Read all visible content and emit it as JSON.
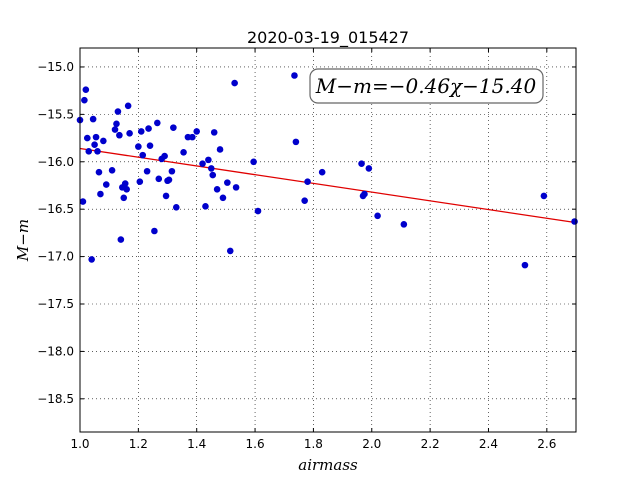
{
  "chart_data": {
    "type": "scatter",
    "title": "2020-03-19_015427",
    "xlabel": "airmass",
    "ylabel": "M−m",
    "xlim": [
      1.0,
      2.7
    ],
    "ylim": [
      -18.85,
      -14.8
    ],
    "ylim_note": "y axis inverted: -14.8 at top, -18.85 at bottom",
    "xticks": [
      1.0,
      1.2,
      1.4,
      1.6,
      1.8,
      2.0,
      2.2,
      2.4,
      2.6
    ],
    "xtick_labels": [
      "1.0",
      "1.2",
      "1.4",
      "1.6",
      "1.8",
      "2.0",
      "2.2",
      "2.4",
      "2.6"
    ],
    "yticks": [
      -15.0,
      -15.5,
      -16.0,
      -16.5,
      -17.0,
      -17.5,
      -18.0,
      -18.5
    ],
    "ytick_labels": [
      "−15.0",
      "−15.5",
      "−16.0",
      "−16.5",
      "−17.0",
      "−17.5",
      "−18.0",
      "−18.5"
    ],
    "grid": true,
    "annotation": "M−m=−0.46χ−15.40",
    "fit": {
      "slope": -0.46,
      "intercept": -15.4,
      "color": "#e00000"
    },
    "point_color": "#0000cc",
    "points": [
      [
        1.0,
        -15.56
      ],
      [
        1.01,
        -16.42
      ],
      [
        1.015,
        -15.35
      ],
      [
        1.02,
        -15.24
      ],
      [
        1.025,
        -15.75
      ],
      [
        1.03,
        -15.89
      ],
      [
        1.04,
        -17.03
      ],
      [
        1.045,
        -15.55
      ],
      [
        1.05,
        -15.82
      ],
      [
        1.055,
        -15.74
      ],
      [
        1.06,
        -15.89
      ],
      [
        1.065,
        -16.11
      ],
      [
        1.07,
        -16.34
      ],
      [
        1.08,
        -15.78
      ],
      [
        1.09,
        -16.24
      ],
      [
        1.11,
        -16.09
      ],
      [
        1.12,
        -15.66
      ],
      [
        1.125,
        -15.6
      ],
      [
        1.13,
        -15.47
      ],
      [
        1.135,
        -15.72
      ],
      [
        1.14,
        -16.82
      ],
      [
        1.145,
        -16.27
      ],
      [
        1.15,
        -16.38
      ],
      [
        1.155,
        -16.23
      ],
      [
        1.16,
        -16.29
      ],
      [
        1.165,
        -15.41
      ],
      [
        1.17,
        -15.7
      ],
      [
        1.2,
        -15.84
      ],
      [
        1.205,
        -16.21
      ],
      [
        1.21,
        -15.68
      ],
      [
        1.215,
        -15.93
      ],
      [
        1.23,
        -16.1
      ],
      [
        1.235,
        -15.65
      ],
      [
        1.24,
        -15.83
      ],
      [
        1.255,
        -16.73
      ],
      [
        1.265,
        -15.59
      ],
      [
        1.27,
        -16.18
      ],
      [
        1.28,
        -15.97
      ],
      [
        1.29,
        -15.94
      ],
      [
        1.295,
        -16.36
      ],
      [
        1.3,
        -16.2
      ],
      [
        1.305,
        -16.19
      ],
      [
        1.315,
        -16.1
      ],
      [
        1.32,
        -15.64
      ],
      [
        1.33,
        -16.48
      ],
      [
        1.355,
        -15.9
      ],
      [
        1.37,
        -15.74
      ],
      [
        1.385,
        -15.74
      ],
      [
        1.4,
        -15.68
      ],
      [
        1.42,
        -16.02
      ],
      [
        1.43,
        -16.47
      ],
      [
        1.44,
        -15.98
      ],
      [
        1.45,
        -16.07
      ],
      [
        1.455,
        -16.14
      ],
      [
        1.46,
        -15.69
      ],
      [
        1.47,
        -16.29
      ],
      [
        1.48,
        -15.87
      ],
      [
        1.49,
        -16.38
      ],
      [
        1.505,
        -16.22
      ],
      [
        1.515,
        -16.94
      ],
      [
        1.53,
        -15.17
      ],
      [
        1.535,
        -16.27
      ],
      [
        1.595,
        -16.0
      ],
      [
        1.61,
        -16.52
      ],
      [
        1.735,
        -15.09
      ],
      [
        1.74,
        -15.79
      ],
      [
        1.77,
        -16.41
      ],
      [
        1.78,
        -16.21
      ],
      [
        1.83,
        -16.11
      ],
      [
        1.965,
        -16.02
      ],
      [
        1.97,
        -16.36
      ],
      [
        1.975,
        -16.34
      ],
      [
        1.99,
        -16.07
      ],
      [
        2.02,
        -16.57
      ],
      [
        2.11,
        -16.66
      ],
      [
        2.525,
        -17.09
      ],
      [
        2.59,
        -16.36
      ],
      [
        2.695,
        -16.63
      ]
    ]
  }
}
